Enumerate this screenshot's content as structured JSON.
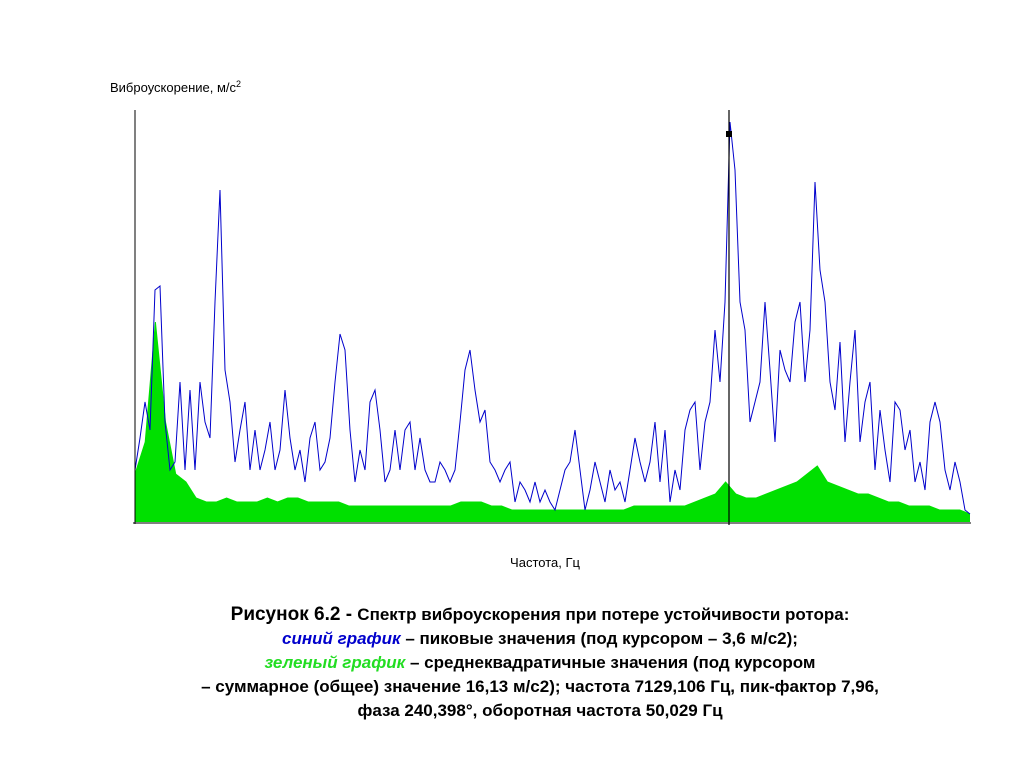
{
  "chart_data": {
    "type": "line",
    "ylabel": "Виброускорение, м/с",
    "ylabel_sup": "2",
    "xlabel": "Частота, Гц",
    "ylim": [
      0,
      103
    ],
    "series": [
      {
        "name": "синий график",
        "color": "#0000cc",
        "values": [
          13,
          21,
          30,
          23,
          58,
          59,
          25,
          13,
          15,
          35,
          13,
          33,
          13,
          35,
          25,
          21,
          55,
          83,
          38,
          30,
          15,
          23,
          30,
          13,
          23,
          13,
          18,
          25,
          13,
          18,
          33,
          21,
          13,
          18,
          10,
          21,
          25,
          13,
          15,
          21,
          35,
          47,
          43,
          23,
          10,
          18,
          13,
          30,
          33,
          23,
          10,
          13,
          23,
          13,
          23,
          25,
          13,
          21,
          13,
          10,
          10,
          15,
          13,
          10,
          13,
          25,
          38,
          43,
          33,
          25,
          28,
          15,
          13,
          10,
          13,
          15,
          5,
          10,
          8,
          5,
          10,
          5,
          8,
          5,
          3,
          8,
          13,
          15,
          23,
          13,
          3,
          8,
          15,
          10,
          5,
          13,
          8,
          10,
          5,
          13,
          21,
          15,
          10,
          15,
          25,
          10,
          23,
          5,
          13,
          8,
          23,
          28,
          30,
          13,
          25,
          30,
          48,
          35,
          55,
          100,
          88,
          55,
          48,
          25,
          30,
          35,
          55,
          38,
          20,
          43,
          38,
          35,
          50,
          55,
          35,
          48,
          85,
          63,
          55,
          35,
          28,
          45,
          20,
          35,
          48,
          20,
          30,
          35,
          13,
          28,
          18,
          10,
          30,
          28,
          18,
          23,
          10,
          15,
          8,
          25,
          30,
          25,
          13,
          8,
          15,
          10,
          3,
          2
        ]
      },
      {
        "name": "зеленый график",
        "color": "#00e000",
        "values": [
          12,
          20,
          50,
          25,
          12,
          10,
          6,
          5,
          5,
          6,
          5,
          5,
          5,
          6,
          5,
          6,
          6,
          5,
          5,
          5,
          5,
          4,
          4,
          4,
          4,
          4,
          4,
          4,
          4,
          4,
          4,
          4,
          5,
          5,
          5,
          4,
          4,
          3,
          3,
          3,
          3,
          3,
          3,
          3,
          3,
          3,
          3,
          3,
          3,
          4,
          4,
          4,
          4,
          4,
          4,
          5,
          6,
          7,
          10,
          7,
          6,
          6,
          7,
          8,
          9,
          10,
          12,
          14,
          10,
          9,
          8,
          7,
          7,
          6,
          5,
          5,
          4,
          4,
          4,
          3,
          3,
          3,
          2
        ]
      }
    ]
  },
  "caption": {
    "lead": "Рисунок 6.2 - ",
    "title": "Спектр виброускорения при потере устойчивости ротора:",
    "blue_name": "синий график",
    "blue_text": " – пиковые значения (под курсором – 3,6 м/с2);",
    "green_name": "зеленый график",
    "green_text": " – среднеквадратичные значения (под курсором",
    "line4": "– суммарное (общее) значение 16,13 м/с2); частота 7129,106 Гц, пик-фактор 7,96,",
    "line5": "фаза 240,398°, оборотная частота 50,029 Гц"
  }
}
